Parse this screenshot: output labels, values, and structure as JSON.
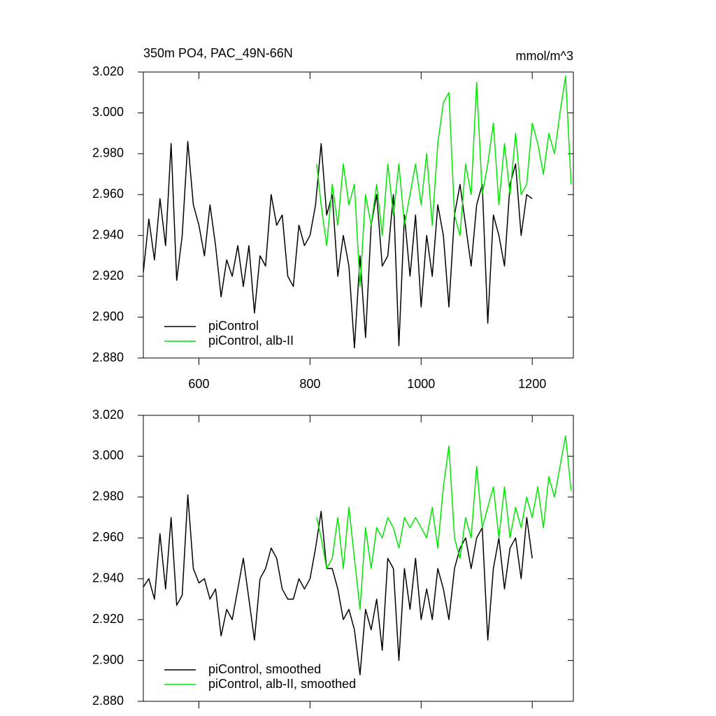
{
  "chart_data": [
    {
      "type": "line",
      "title": "350m PO4, PAC_49N-66N",
      "units": "mmol/m^3",
      "xlim": [
        500,
        1274
      ],
      "xticks": [
        600,
        800,
        1000,
        1200
      ],
      "show_xtick_labels": true,
      "ylim": [
        2.88,
        3.02
      ],
      "yticks": [
        {
          "value": 2.88,
          "label": "2.880"
        },
        {
          "value": 2.9,
          "label": "2.900"
        },
        {
          "value": 2.92,
          "label": "2.920"
        },
        {
          "value": 2.94,
          "label": "2.940"
        },
        {
          "value": 2.96,
          "label": "2.960"
        },
        {
          "value": 2.98,
          "label": "2.980"
        },
        {
          "value": 3.0,
          "label": "3.000"
        },
        {
          "value": 3.02,
          "label": "3.020"
        }
      ],
      "legend": "lower left",
      "series": [
        {
          "name": "piControl",
          "color": "#000000",
          "x": [
            500,
            510,
            520,
            530,
            540,
            550,
            560,
            570,
            580,
            590,
            600,
            610,
            620,
            630,
            640,
            650,
            660,
            670,
            680,
            690,
            700,
            710,
            720,
            730,
            740,
            750,
            760,
            770,
            780,
            790,
            800,
            810,
            820,
            830,
            840,
            850,
            860,
            870,
            880,
            890,
            900,
            910,
            920,
            930,
            940,
            950,
            960,
            970,
            980,
            990,
            1000,
            1010,
            1020,
            1030,
            1040,
            1050,
            1060,
            1070,
            1080,
            1090,
            1100,
            1110,
            1120,
            1130,
            1140,
            1150,
            1160,
            1170,
            1180,
            1190,
            1200
          ],
          "values": [
            2.922,
            2.948,
            2.928,
            2.958,
            2.935,
            2.985,
            2.918,
            2.94,
            2.986,
            2.955,
            2.945,
            2.93,
            2.955,
            2.935,
            2.91,
            2.928,
            2.92,
            2.935,
            2.915,
            2.935,
            2.902,
            2.93,
            2.925,
            2.96,
            2.945,
            2.95,
            2.92,
            2.915,
            2.945,
            2.935,
            2.94,
            2.955,
            2.985,
            2.95,
            2.96,
            2.92,
            2.94,
            2.925,
            2.885,
            2.93,
            2.89,
            2.945,
            2.96,
            2.925,
            2.93,
            2.96,
            2.886,
            2.95,
            2.92,
            2.95,
            2.905,
            2.94,
            2.92,
            2.955,
            2.94,
            2.905,
            2.95,
            2.965,
            2.945,
            2.925,
            2.955,
            2.965,
            2.897,
            2.95,
            2.94,
            2.925,
            2.965,
            2.975,
            2.94,
            2.96,
            2.958
          ]
        },
        {
          "name": "piControl, alb-II",
          "color": "#00e600",
          "x": [
            812,
            820,
            830,
            840,
            850,
            860,
            870,
            880,
            890,
            900,
            910,
            920,
            930,
            940,
            950,
            960,
            970,
            980,
            990,
            1000,
            1010,
            1020,
            1030,
            1040,
            1050,
            1060,
            1070,
            1080,
            1090,
            1100,
            1110,
            1120,
            1130,
            1140,
            1150,
            1160,
            1170,
            1180,
            1190,
            1200,
            1210,
            1220,
            1230,
            1240,
            1250,
            1260,
            1270
          ],
          "values": [
            2.975,
            2.955,
            2.935,
            2.965,
            2.945,
            2.975,
            2.955,
            2.965,
            2.915,
            2.96,
            2.945,
            2.965,
            2.94,
            2.975,
            2.95,
            2.975,
            2.945,
            2.96,
            2.975,
            2.955,
            2.98,
            2.945,
            2.985,
            3.005,
            3.01,
            2.95,
            2.94,
            2.975,
            2.96,
            3.015,
            2.96,
            2.975,
            2.995,
            2.955,
            2.985,
            2.96,
            2.99,
            2.96,
            2.965,
            2.995,
            2.985,
            2.97,
            2.99,
            2.98,
            3.0,
            3.018,
            2.965
          ]
        }
      ]
    },
    {
      "type": "line",
      "xlim": [
        500,
        1274
      ],
      "xticks": [
        600,
        800,
        1000,
        1200
      ],
      "show_xtick_labels": false,
      "ylim": [
        2.88,
        3.02
      ],
      "yticks": [
        {
          "value": 2.88,
          "label": "2.880"
        },
        {
          "value": 2.9,
          "label": "2.900"
        },
        {
          "value": 2.92,
          "label": "2.920"
        },
        {
          "value": 2.94,
          "label": "2.940"
        },
        {
          "value": 2.96,
          "label": "2.960"
        },
        {
          "value": 2.98,
          "label": "2.980"
        },
        {
          "value": 3.0,
          "label": "3.000"
        },
        {
          "value": 3.02,
          "label": "3.020"
        }
      ],
      "legend": "lower left",
      "series": [
        {
          "name": "piControl, smoothed",
          "color": "#000000",
          "x": [
            500,
            510,
            520,
            530,
            540,
            550,
            560,
            570,
            580,
            590,
            600,
            610,
            620,
            630,
            640,
            650,
            660,
            670,
            680,
            690,
            700,
            710,
            720,
            730,
            740,
            750,
            760,
            770,
            780,
            790,
            800,
            810,
            820,
            830,
            840,
            850,
            860,
            870,
            880,
            890,
            900,
            910,
            920,
            930,
            940,
            950,
            960,
            970,
            980,
            990,
            1000,
            1010,
            1020,
            1030,
            1040,
            1050,
            1060,
            1070,
            1080,
            1090,
            1100,
            1110,
            1120,
            1130,
            1140,
            1150,
            1160,
            1170,
            1180,
            1190,
            1200
          ],
          "values": [
            2.936,
            2.94,
            2.93,
            2.962,
            2.935,
            2.97,
            2.927,
            2.932,
            2.981,
            2.945,
            2.938,
            2.94,
            2.93,
            2.935,
            2.912,
            2.925,
            2.92,
            2.935,
            2.95,
            2.93,
            2.91,
            2.94,
            2.945,
            2.955,
            2.95,
            2.935,
            2.93,
            2.93,
            2.94,
            2.935,
            2.94,
            2.955,
            2.973,
            2.945,
            2.945,
            2.935,
            2.92,
            2.925,
            2.915,
            2.893,
            2.925,
            2.915,
            2.93,
            2.905,
            2.95,
            2.945,
            2.9,
            2.945,
            2.925,
            2.95,
            2.92,
            2.935,
            2.92,
            2.945,
            2.935,
            2.92,
            2.945,
            2.955,
            2.96,
            2.945,
            2.96,
            2.965,
            2.91,
            2.945,
            2.96,
            2.935,
            2.955,
            2.96,
            2.94,
            2.97,
            2.95
          ]
        },
        {
          "name": "piControl, alb-II, smoothed",
          "color": "#00e600",
          "x": [
            812,
            820,
            830,
            840,
            850,
            860,
            870,
            880,
            890,
            900,
            910,
            920,
            930,
            940,
            950,
            960,
            970,
            980,
            990,
            1000,
            1010,
            1020,
            1030,
            1040,
            1050,
            1060,
            1070,
            1080,
            1090,
            1100,
            1110,
            1120,
            1130,
            1140,
            1150,
            1160,
            1170,
            1180,
            1190,
            1200,
            1210,
            1220,
            1230,
            1240,
            1250,
            1260,
            1270
          ],
          "values": [
            2.97,
            2.96,
            2.945,
            2.95,
            2.97,
            2.945,
            2.975,
            2.95,
            2.925,
            2.965,
            2.945,
            2.965,
            2.96,
            2.97,
            2.965,
            2.955,
            2.97,
            2.965,
            2.97,
            2.965,
            2.96,
            2.975,
            2.955,
            2.985,
            3.005,
            2.96,
            2.95,
            2.97,
            2.96,
            2.995,
            2.965,
            2.975,
            2.985,
            2.96,
            2.985,
            2.96,
            2.975,
            2.965,
            2.98,
            2.97,
            2.985,
            2.965,
            2.99,
            2.98,
            2.995,
            3.01,
            2.983
          ]
        }
      ]
    }
  ]
}
